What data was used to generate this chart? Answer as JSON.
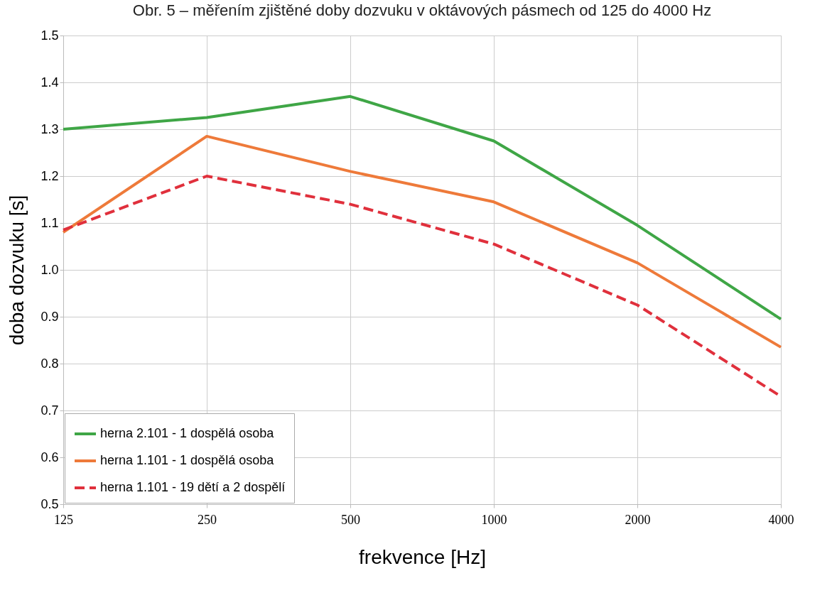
{
  "chart_data": {
    "type": "line",
    "title": "Obr. 5 – měřením zjištěné doby dozvuku v oktávových pásmech od 125 do 4000 Hz",
    "xlabel": "frekvence [Hz]",
    "ylabel": "doba dozvuku [s]",
    "categories": [
      "125",
      "250",
      "500",
      "1000",
      "2000",
      "4000"
    ],
    "ylim": [
      0.5,
      1.5
    ],
    "yticks": [
      0.5,
      0.6,
      0.7,
      0.8,
      0.9,
      {
        "value": 1.0,
        "label": "1.0"
      },
      1.1,
      1.2,
      1.3,
      1.4,
      1.5
    ],
    "grid": true,
    "legend": "bottom left",
    "series": [
      {
        "name": "herna 2.101 - 1 dospělá osoba",
        "color": "#3fa646",
        "line_style": "solid",
        "values": [
          1.3,
          1.325,
          1.37,
          1.275,
          1.095,
          0.895
        ]
      },
      {
        "name": "herna 1.101 - 1 dospělá osoba",
        "color": "#ee7a3a",
        "line_style": "solid",
        "values": [
          1.08,
          1.285,
          1.21,
          1.145,
          1.015,
          0.835
        ]
      },
      {
        "name": "herna 1.101 - 19 dětí a 2 dospělí",
        "color": "#e0303c",
        "line_style": "dashed",
        "values": [
          1.085,
          1.2,
          1.14,
          1.055,
          0.925,
          0.73
        ]
      }
    ]
  }
}
